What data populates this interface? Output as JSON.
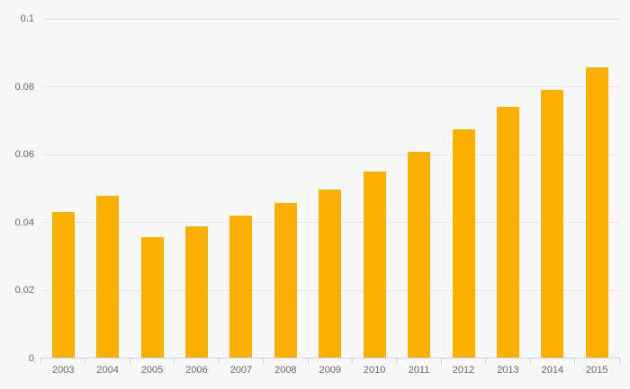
{
  "chart_data": {
    "type": "bar",
    "title": "",
    "xlabel": "",
    "ylabel": "",
    "categories": [
      "2003",
      "2004",
      "2005",
      "2006",
      "2007",
      "2008",
      "2009",
      "2010",
      "2011",
      "2012",
      "2013",
      "2014",
      "2015"
    ],
    "values": [
      0.043,
      0.0478,
      0.0356,
      0.0388,
      0.0421,
      0.0456,
      0.0496,
      0.0549,
      0.0607,
      0.0673,
      0.074,
      0.079,
      0.0856
    ],
    "ylim": [
      0,
      0.1
    ],
    "yticks": [
      0,
      0.02,
      0.04,
      0.06,
      0.08,
      0.1
    ],
    "ytick_labels": [
      "0",
      "0.02",
      "0.04",
      "0.06",
      "0.08",
      "0.1"
    ],
    "grid": true,
    "legend": false
  },
  "colors": {
    "background": "#f8f8f8",
    "bar": "#f9b000",
    "gridline": "#e6e6e6",
    "axis_line": "#ccd6eb",
    "label_text": "#666666"
  }
}
